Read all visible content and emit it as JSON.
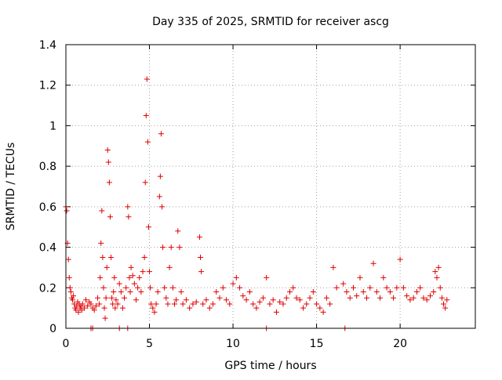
{
  "chart_data": {
    "type": "scatter",
    "title": "Day 335 of 2025, SRMTID for receiver ascg",
    "xlabel": "GPS time / hours",
    "ylabel": "SRMTID / TECUs",
    "xlim": [
      0,
      24.5
    ],
    "ylim": [
      0,
      1.4
    ],
    "xticks": [
      0,
      5,
      10,
      15,
      20
    ],
    "xtick_labels": [
      "0",
      "5",
      "10",
      "15",
      "20"
    ],
    "yticks": [
      0,
      0.2,
      0.4,
      0.6,
      0.8,
      1.0,
      1.2,
      1.4
    ],
    "ytick_labels": [
      "0",
      "0.2",
      "0.4",
      "0.6",
      "0.8",
      "1",
      "1.2",
      "1.4"
    ],
    "grid": true,
    "marker": "+",
    "color": "#e00000",
    "series": [
      {
        "name": "SRMTID",
        "x": [
          0.0,
          0.05,
          0.1,
          0.15,
          0.2,
          0.25,
          0.3,
          0.35,
          0.4,
          0.45,
          0.5,
          0.55,
          0.6,
          0.65,
          0.7,
          0.75,
          0.8,
          0.85,
          0.9,
          0.95,
          1.0,
          1.1,
          1.2,
          1.3,
          1.4,
          1.5,
          1.6,
          1.7,
          1.8,
          1.9,
          2.0,
          2.05,
          2.1,
          2.15,
          2.2,
          2.25,
          2.3,
          2.35,
          2.4,
          2.45,
          2.5,
          2.55,
          2.6,
          2.65,
          2.7,
          2.75,
          2.8,
          2.85,
          2.9,
          2.95,
          3.0,
          3.1,
          3.2,
          3.3,
          3.4,
          3.5,
          3.6,
          3.7,
          3.75,
          3.8,
          3.85,
          3.9,
          4.0,
          4.1,
          4.2,
          4.3,
          4.4,
          4.5,
          4.6,
          4.7,
          4.75,
          4.8,
          4.85,
          4.9,
          4.95,
          5.0,
          5.05,
          5.1,
          5.2,
          5.3,
          5.4,
          5.5,
          5.6,
          5.65,
          5.7,
          5.75,
          5.8,
          5.9,
          6.0,
          6.1,
          6.2,
          6.3,
          6.4,
          6.5,
          6.6,
          6.7,
          6.8,
          6.9,
          7.0,
          7.2,
          7.4,
          7.6,
          7.8,
          8.0,
          8.05,
          8.1,
          8.2,
          8.4,
          8.6,
          8.8,
          9.0,
          9.2,
          9.4,
          9.6,
          9.8,
          10.0,
          10.2,
          10.4,
          10.6,
          10.8,
          11.0,
          11.2,
          11.4,
          11.6,
          11.8,
          12.0,
          12.2,
          12.4,
          12.6,
          12.8,
          13.0,
          13.2,
          13.4,
          13.6,
          13.8,
          14.0,
          14.2,
          14.4,
          14.6,
          14.8,
          15.0,
          15.2,
          15.4,
          15.6,
          15.8,
          16.0,
          16.2,
          16.6,
          16.8,
          17.0,
          17.2,
          17.4,
          17.6,
          17.8,
          18.0,
          18.2,
          18.4,
          18.6,
          18.8,
          19.0,
          19.2,
          19.4,
          19.6,
          19.8,
          20.0,
          20.2,
          20.4,
          20.6,
          20.8,
          21.0,
          21.2,
          21.4,
          21.6,
          21.8,
          22.0,
          22.1,
          22.2,
          22.3,
          22.4,
          22.5,
          22.6,
          22.7,
          22.8,
          1.5,
          1.6,
          3.2,
          3.7,
          12.0,
          16.7
        ],
        "y": [
          0.6,
          0.58,
          0.42,
          0.34,
          0.25,
          0.2,
          0.18,
          0.15,
          0.14,
          0.16,
          0.12,
          0.1,
          0.09,
          0.11,
          0.13,
          0.08,
          0.12,
          0.1,
          0.11,
          0.09,
          0.12,
          0.1,
          0.14,
          0.11,
          0.13,
          0.12,
          0.1,
          0.09,
          0.11,
          0.15,
          0.12,
          0.25,
          0.42,
          0.58,
          0.35,
          0.2,
          0.1,
          0.05,
          0.15,
          0.3,
          0.88,
          0.82,
          0.72,
          0.55,
          0.35,
          0.15,
          0.12,
          0.18,
          0.25,
          0.1,
          0.14,
          0.12,
          0.22,
          0.18,
          0.1,
          0.15,
          0.2,
          0.6,
          0.55,
          0.25,
          0.18,
          0.3,
          0.26,
          0.22,
          0.14,
          0.2,
          0.25,
          0.18,
          0.28,
          0.35,
          0.72,
          1.05,
          1.23,
          0.92,
          0.5,
          0.28,
          0.2,
          0.12,
          0.1,
          0.08,
          0.12,
          0.18,
          0.65,
          0.75,
          0.96,
          0.6,
          0.4,
          0.2,
          0.15,
          0.12,
          0.3,
          0.4,
          0.2,
          0.12,
          0.14,
          0.48,
          0.4,
          0.18,
          0.12,
          0.14,
          0.1,
          0.12,
          0.13,
          0.45,
          0.35,
          0.28,
          0.12,
          0.14,
          0.1,
          0.12,
          0.18,
          0.15,
          0.2,
          0.14,
          0.12,
          0.22,
          0.25,
          0.2,
          0.16,
          0.14,
          0.18,
          0.12,
          0.1,
          0.13,
          0.15,
          0.25,
          0.12,
          0.14,
          0.08,
          0.13,
          0.12,
          0.15,
          0.18,
          0.2,
          0.15,
          0.14,
          0.1,
          0.12,
          0.15,
          0.18,
          0.12,
          0.1,
          0.08,
          0.15,
          0.12,
          0.3,
          0.2,
          0.22,
          0.18,
          0.15,
          0.2,
          0.16,
          0.25,
          0.18,
          0.15,
          0.2,
          0.32,
          0.18,
          0.15,
          0.25,
          0.2,
          0.18,
          0.15,
          0.2,
          0.34,
          0.2,
          0.16,
          0.14,
          0.15,
          0.18,
          0.2,
          0.15,
          0.14,
          0.16,
          0.18,
          0.28,
          0.25,
          0.3,
          0.2,
          0.15,
          0.12,
          0.1,
          0.14,
          0.0,
          0.0,
          0.0,
          0.0,
          0.0,
          0.0
        ]
      }
    ]
  }
}
